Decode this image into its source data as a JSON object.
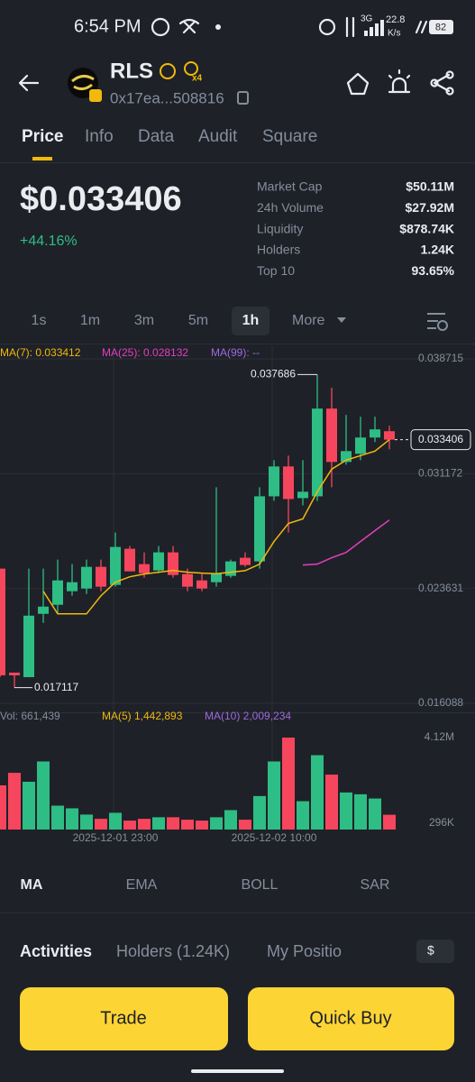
{
  "status_bar": {
    "time": "6:54 PM",
    "network": "3G",
    "speed": "22.8",
    "speed_unit": "K/s",
    "battery": "82"
  },
  "header": {
    "symbol": "RLS",
    "badge": "x4",
    "address": "0x17ea...508816"
  },
  "tabs": [
    "Price",
    "Info",
    "Data",
    "Audit",
    "Square"
  ],
  "price": {
    "value": "$0.033406",
    "change": "+44.16%"
  },
  "stats": [
    [
      "Market Cap",
      "$50.11M"
    ],
    [
      "24h Volume",
      "$27.92M"
    ],
    [
      "Liquidity",
      "$878.74K"
    ],
    [
      "Holders",
      "1.24K"
    ],
    [
      "Top 10",
      "93.65%"
    ]
  ],
  "timeframes": [
    "1s",
    "1m",
    "3m",
    "5m",
    "1h",
    "More"
  ],
  "chart_data": {
    "type": "candlestick",
    "categories": [
      null,
      null,
      null,
      null,
      null,
      null,
      null,
      null,
      "2025-12-01 23:00",
      null,
      null,
      null,
      null,
      null,
      null,
      null,
      null,
      null,
      null,
      "2025-12-02 10:00",
      null,
      null,
      null,
      null,
      null,
      null,
      null,
      null
    ],
    "open": [
      0.024934,
      0.018104,
      0.017806,
      0.021965,
      0.022559,
      0.02345,
      0.023628,
      0.025053,
      0.023865,
      0.026241,
      0.025231,
      0.024815,
      0.026003,
      0.024578,
      0.024162,
      0.024043,
      0.024459,
      0.025647,
      0.025409,
      0.029686,
      0.031646,
      0.029567,
      0.029686,
      0.035448,
      0.031943,
      0.032478,
      0.033547,
      0.033963
    ],
    "high": [
      0.024934,
      0.018104,
      0.024934,
      0.024934,
      0.025529,
      0.025231,
      0.025529,
      0.025529,
      0.027311,
      0.02642,
      0.026003,
      0.02642,
      0.02642,
      0.024934,
      0.024637,
      0.03028,
      0.025529,
      0.026003,
      0.03028,
      0.032062,
      0.032359,
      0.032062,
      0.037686,
      0.036814,
      0.035032,
      0.034913,
      0.034913,
      0.034319
    ],
    "low": [
      0.017806,
      0.017117,
      0.017806,
      0.021371,
      0.021965,
      0.023153,
      0.023271,
      0.02345,
      0.023747,
      0.024756,
      0.02434,
      0.024637,
      0.02434,
      0.02345,
      0.02345,
      0.023747,
      0.02434,
      0.025053,
      0.024934,
      0.029389,
      0.027311,
      0.029092,
      0.029389,
      0.03028,
      0.031765,
      0.032062,
      0.03325,
      0.032775
    ],
    "close": [
      0.017925,
      0.017925,
      0.021846,
      0.02244,
      0.024162,
      0.024043,
      0.025053,
      0.023747,
      0.02636,
      0.024756,
      0.024637,
      0.026003,
      0.024518,
      0.023747,
      0.023628,
      0.024637,
      0.025409,
      0.025172,
      0.029686,
      0.031646,
      0.029508,
      0.029985,
      0.035448,
      0.031943,
      0.032656,
      0.033547,
      0.034082,
      0.033406
    ],
    "ylim": [
      0.016088,
      0.038715
    ],
    "yticks": [
      0.016088,
      0.023631,
      0.031172,
      0.038715
    ],
    "colors": {
      "up": "#2ebd85",
      "down": "#f6465d"
    },
    "lines": [
      {
        "label": "MA(7): 0.033412",
        "color": "#f0b90b",
        "values": [
          null,
          null,
          null,
          0.02345,
          0.021965,
          0.021965,
          0.021965,
          0.023153,
          0.024043,
          0.0244,
          0.024578,
          0.0247,
          0.024815,
          0.0247,
          0.024637,
          0.0246,
          0.0247,
          0.0248,
          0.025231,
          0.026716,
          0.027904,
          0.028201,
          0.029985,
          0.031468,
          0.032062,
          0.032359,
          0.032656,
          0.033412
        ]
      },
      {
        "label": "MA(25): 0.028132",
        "color": "#e040c0",
        "values": [
          null,
          null,
          null,
          null,
          null,
          null,
          null,
          null,
          null,
          null,
          null,
          null,
          null,
          null,
          null,
          null,
          null,
          null,
          null,
          null,
          null,
          0.02517,
          0.02523,
          0.02565,
          0.026,
          0.02672,
          0.02743,
          0.028132
        ]
      },
      {
        "label": "MA(99): --",
        "color": "#9c6ade",
        "values": []
      }
    ],
    "volume": {
      "label": "Vol: 661,439",
      "values": [
        1980000,
        2540000,
        2140000,
        3050000,
        1070000,
        950000,
        670000,
        480000,
        750000,
        400000,
        480000,
        550000,
        550000,
        440000,
        400000,
        550000,
        870000,
        440000,
        1500000,
        3050000,
        4120000,
        1270000,
        3330000,
        2460000,
        1660000,
        1580000,
        1390000,
        661439
      ],
      "ylim": [
        0,
        4120000
      ],
      "yticks": [
        {
          "value": 296000,
          "label": "296K"
        },
        {
          "value": 4120000,
          "label": "4.12M"
        }
      ],
      "ma_labels": [
        {
          "label": "MA(5) 1,442,893",
          "color": "#f0b90b"
        },
        {
          "label": "MA(10) 2,009,234",
          "color": "#9c6ade"
        }
      ]
    }
  },
  "indicators": [
    "MA",
    "EMA",
    "BOLL",
    "SAR"
  ],
  "bottom_tabs": [
    "Activities",
    "Holders (1.24K)",
    "My Positio"
  ],
  "currency": "$",
  "buttons": [
    "Trade",
    "Quick Buy"
  ]
}
